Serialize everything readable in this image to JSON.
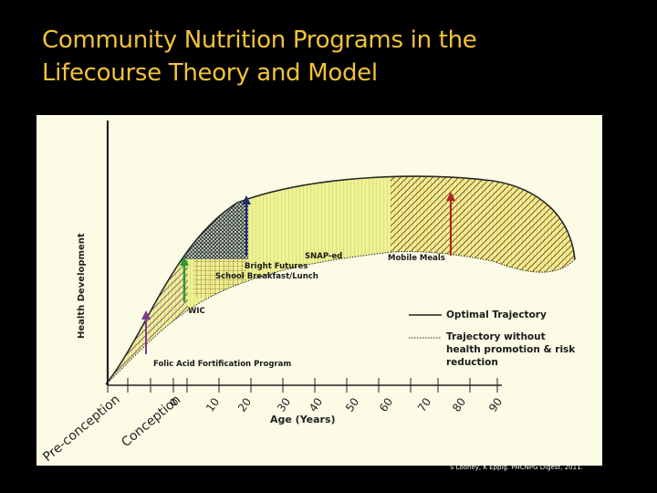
{
  "slide": {
    "title_line1": "Community Nutrition Programs in the",
    "title_line2": "Lifecourse Theory and Model",
    "citation": "S Looney, K Eppig. PHCNPG Digest, 2011."
  },
  "diagram": {
    "y_axis_label": "Health Development",
    "x_axis_label": "Age (Years)",
    "x_ticks": [
      "Pre-conception",
      "Conception",
      "0",
      "10",
      "20",
      "30",
      "40",
      "50",
      "60",
      "70",
      "80",
      "90"
    ],
    "programs": {
      "folic_acid": "Folic Acid  Fortification Program",
      "wic": "WIC",
      "bright_futures": "Bright Futures",
      "school_meals": "School Breakfast/Lunch",
      "snap_ed": "SNAP-ed",
      "mobile_meals": "Mobile Meals"
    },
    "legend": {
      "optimal": "Optimal Trajectory",
      "without_line1": "Trajectory without",
      "without_line2": "health promotion & risk",
      "without_line3": "reduction"
    },
    "colors": {
      "background": "#fbfbe6",
      "band_fill": "#eef29a",
      "yellow_stripe": "#d6dc5a",
      "purple_hatch": "#7a3b8a",
      "brown_hatch": "#8a3b1e",
      "navy": "#1a2d6e",
      "green_arrow": "#2b9a2b",
      "purple_arrow": "#7a3b8a",
      "red_arrow": "#b02020",
      "title": "#f2c23a"
    }
  }
}
